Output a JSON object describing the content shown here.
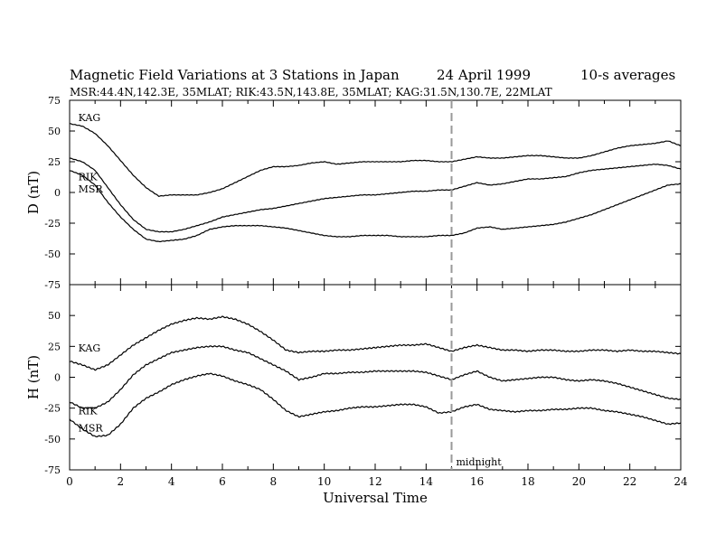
{
  "header": {
    "title": "Magnetic Field Variations at 3 Stations in Japan",
    "date": "24  April     1999",
    "averaging": "10-s averages",
    "stations": "MSR:44.4N,142.3E, 35MLAT;   RIK:43.5N,143.8E, 35MLAT;   KAG:31.5N,130.7E, 22MLAT"
  },
  "chart_data": [
    {
      "type": "line",
      "panel": "top",
      "ylabel": "D (nT)",
      "xlabel": "",
      "ylim": [
        -75,
        75
      ],
      "yticks": [
        -75,
        -50,
        -25,
        0,
        25,
        50,
        75
      ],
      "xlim": [
        0,
        24
      ],
      "series": [
        {
          "name": "KAG",
          "label_at": [
            0.2,
            58
          ],
          "x": [
            0,
            0.5,
            1,
            1.5,
            2,
            2.5,
            3,
            3.5,
            4,
            4.5,
            5,
            5.5,
            6,
            6.5,
            7,
            7.5,
            8,
            8.5,
            9,
            9.5,
            10,
            10.5,
            11,
            11.5,
            12,
            12.5,
            13,
            13.5,
            14,
            14.5,
            15,
            15.5,
            16,
            16.5,
            17,
            17.5,
            18,
            18.5,
            19,
            19.5,
            20,
            20.5,
            21,
            21.5,
            22,
            22.5,
            23,
            23.5,
            24
          ],
          "y": [
            56,
            54,
            48,
            38,
            26,
            14,
            4,
            -3,
            -2,
            -2,
            -2,
            0,
            3,
            8,
            13,
            18,
            21,
            21,
            22,
            24,
            25,
            23,
            24,
            25,
            25,
            25,
            25,
            26,
            26,
            25,
            25,
            27,
            29,
            28,
            28,
            29,
            30,
            30,
            29,
            28,
            28,
            30,
            33,
            36,
            38,
            39,
            40,
            42,
            38
          ]
        },
        {
          "name": "RIK",
          "label_at": [
            0.2,
            10
          ],
          "x": [
            0,
            0.5,
            1,
            1.5,
            2,
            2.5,
            3,
            3.5,
            4,
            4.5,
            5,
            5.5,
            6,
            6.5,
            7,
            7.5,
            8,
            8.5,
            9,
            9.5,
            10,
            10.5,
            11,
            11.5,
            12,
            12.5,
            13,
            13.5,
            14,
            14.5,
            15,
            15.5,
            16,
            16.5,
            17,
            17.5,
            18,
            18.5,
            19,
            19.5,
            20,
            20.5,
            21,
            21.5,
            22,
            22.5,
            23,
            23.5,
            24
          ],
          "y": [
            28,
            25,
            18,
            4,
            -10,
            -22,
            -30,
            -32,
            -32,
            -30,
            -27,
            -24,
            -20,
            -18,
            -16,
            -14,
            -13,
            -11,
            -9,
            -7,
            -5,
            -4,
            -3,
            -2,
            -2,
            -1,
            0,
            1,
            1,
            2,
            2,
            5,
            8,
            6,
            7,
            9,
            11,
            11,
            12,
            13,
            16,
            18,
            19,
            20,
            21,
            22,
            23,
            22,
            19
          ]
        },
        {
          "name": "MSR",
          "label_at": [
            0.2,
            0
          ],
          "x": [
            0,
            0.5,
            1,
            1.5,
            2,
            2.5,
            3,
            3.5,
            4,
            4.5,
            5,
            5.5,
            6,
            6.5,
            7,
            7.5,
            8,
            8.5,
            9,
            9.5,
            10,
            10.5,
            11,
            11.5,
            12,
            12.5,
            13,
            13.5,
            14,
            14.5,
            15,
            15.5,
            16,
            16.5,
            17,
            17.5,
            18,
            18.5,
            19,
            19.5,
            20,
            20.5,
            21,
            21.5,
            22,
            22.5,
            23,
            23.5,
            24
          ],
          "y": [
            18,
            14,
            6,
            -8,
            -20,
            -30,
            -38,
            -40,
            -39,
            -38,
            -35,
            -30,
            -28,
            -27,
            -27,
            -27,
            -28,
            -29,
            -31,
            -33,
            -35,
            -36,
            -36,
            -35,
            -35,
            -35,
            -36,
            -36,
            -36,
            -35,
            -35,
            -33,
            -29,
            -28,
            -30,
            -29,
            -28,
            -27,
            -26,
            -24,
            -21,
            -18,
            -14,
            -10,
            -6,
            -2,
            2,
            6,
            7
          ]
        }
      ]
    },
    {
      "type": "line",
      "panel": "bottom",
      "ylabel": "H (nT)",
      "xlabel": "Universal Time",
      "ylim": [
        -75,
        75
      ],
      "yticks": [
        -75,
        -50,
        -25,
        0,
        25,
        50
      ],
      "xlim": [
        0,
        24
      ],
      "xticks": [
        0,
        2,
        4,
        6,
        8,
        10,
        12,
        14,
        16,
        18,
        20,
        22,
        24
      ],
      "series": [
        {
          "name": "KAG",
          "label_at": [
            0.2,
            21
          ],
          "x": [
            0,
            0.5,
            1,
            1.5,
            2,
            2.5,
            3,
            3.5,
            4,
            4.5,
            5,
            5.5,
            6,
            6.5,
            7,
            7.5,
            8,
            8.5,
            9,
            9.5,
            10,
            10.5,
            11,
            11.5,
            12,
            12.5,
            13,
            13.5,
            14,
            14.5,
            15,
            15.5,
            16,
            16.5,
            17,
            17.5,
            18,
            18.5,
            19,
            19.5,
            20,
            20.5,
            21,
            21.5,
            22,
            22.5,
            23,
            23.5,
            24
          ],
          "y": [
            13,
            10,
            6,
            10,
            18,
            26,
            32,
            38,
            43,
            46,
            48,
            47,
            49,
            47,
            43,
            37,
            30,
            22,
            20,
            21,
            21,
            22,
            22,
            23,
            24,
            25,
            26,
            26,
            27,
            24,
            21,
            24,
            26,
            24,
            22,
            22,
            21,
            22,
            22,
            21,
            21,
            22,
            22,
            21,
            22,
            21,
            21,
            20,
            19
          ]
        },
        {
          "name": "RIK",
          "label_at": [
            0.2,
            -30
          ],
          "x": [
            0,
            0.5,
            1,
            1.5,
            2,
            2.5,
            3,
            3.5,
            4,
            4.5,
            5,
            5.5,
            6,
            6.5,
            7,
            7.5,
            8,
            8.5,
            9,
            9.5,
            10,
            10.5,
            11,
            11.5,
            12,
            12.5,
            13,
            13.5,
            14,
            14.5,
            15,
            15.5,
            16,
            16.5,
            17,
            17.5,
            18,
            18.5,
            19,
            19.5,
            20,
            20.5,
            21,
            21.5,
            22,
            22.5,
            23,
            23.5,
            24
          ],
          "y": [
            -20,
            -25,
            -25,
            -20,
            -10,
            2,
            10,
            15,
            20,
            22,
            24,
            25,
            25,
            22,
            20,
            15,
            10,
            5,
            -2,
            0,
            3,
            3,
            4,
            4,
            5,
            5,
            5,
            5,
            4,
            1,
            -2,
            2,
            5,
            0,
            -3,
            -2,
            -1,
            0,
            0,
            -2,
            -3,
            -2,
            -3,
            -5,
            -8,
            -11,
            -14,
            -17,
            -18
          ]
        },
        {
          "name": "MSR",
          "label_at": [
            0.2,
            -44
          ],
          "x": [
            0,
            0.5,
            1,
            1.5,
            2,
            2.5,
            3,
            3.5,
            4,
            4.5,
            5,
            5.5,
            6,
            6.5,
            7,
            7.5,
            8,
            8.5,
            9,
            9.5,
            10,
            10.5,
            11,
            11.5,
            12,
            12.5,
            13,
            13.5,
            14,
            14.5,
            15,
            15.5,
            16,
            16.5,
            17,
            17.5,
            18,
            18.5,
            19,
            19.5,
            20,
            20.5,
            21,
            21.5,
            22,
            22.5,
            23,
            23.5,
            24
          ],
          "y": [
            -34,
            -42,
            -48,
            -47,
            -38,
            -25,
            -17,
            -12,
            -6,
            -2,
            1,
            3,
            1,
            -3,
            -6,
            -10,
            -18,
            -27,
            -32,
            -30,
            -28,
            -27,
            -25,
            -24,
            -24,
            -23,
            -22,
            -22,
            -24,
            -29,
            -28,
            -24,
            -22,
            -26,
            -27,
            -28,
            -27,
            -27,
            -26,
            -26,
            -25,
            -25,
            -27,
            -28,
            -30,
            -32,
            -35,
            -38,
            -37
          ]
        }
      ]
    }
  ],
  "annotations": {
    "vline_x": 15,
    "midnight_label": "midnight"
  }
}
